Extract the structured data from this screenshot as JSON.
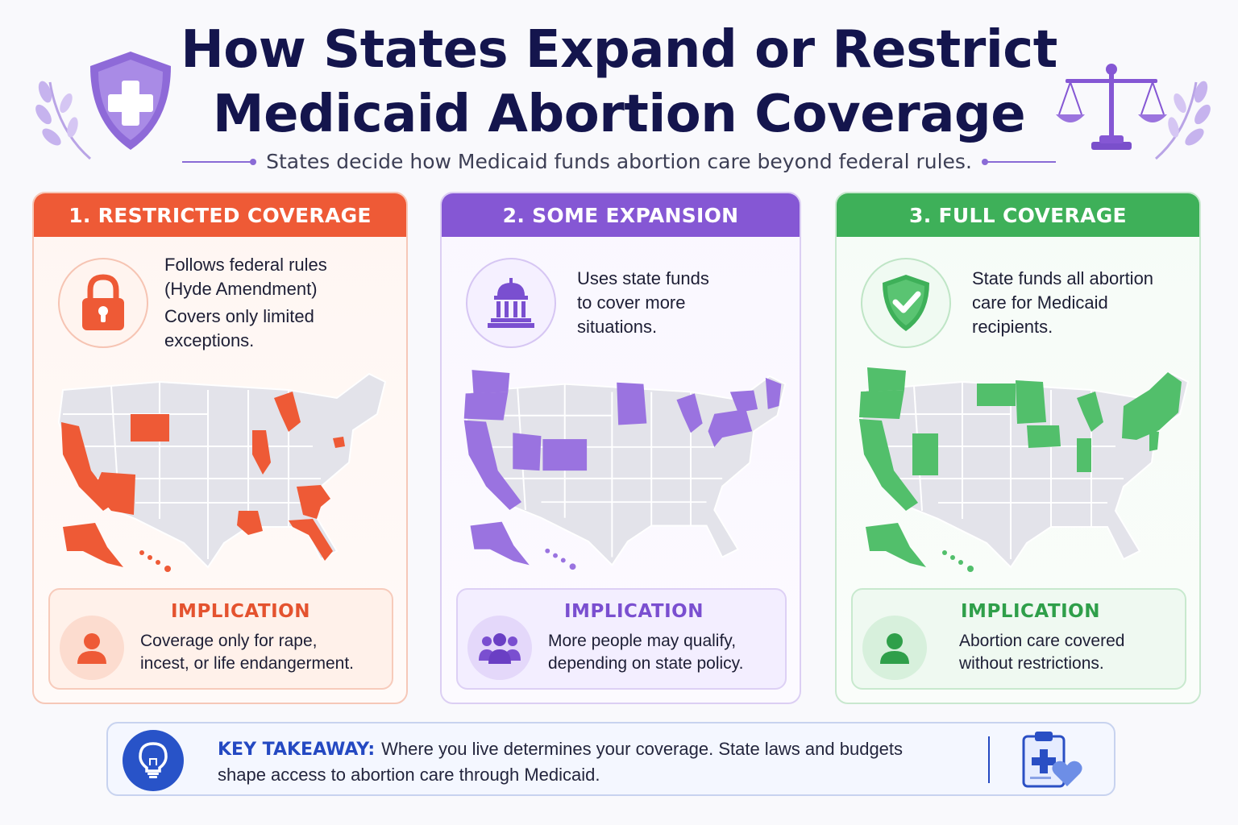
{
  "header": {
    "title_line1": "How States Expand or Restrict",
    "title_line2": "Medicaid Abortion Coverage",
    "subtitle": "States decide how Medicaid funds abortion care beyond federal rules.",
    "left_icon": "shield-plus-icon",
    "right_icon": "scales-of-justice-icon"
  },
  "cards": [
    {
      "heading": "1. RESTRICTED COVERAGE",
      "icon": "padlock-icon",
      "intro": [
        "Follows federal rules",
        "(Hyde Amendment)",
        "Covers only limited",
        "exceptions."
      ],
      "implication_label": "IMPLICATION",
      "implication_icon": "person-icon",
      "implication_text": [
        "Coverage only for rape,",
        "incest, or life endangerment."
      ],
      "color": "#ee5a36"
    },
    {
      "heading": "2. SOME EXPANSION",
      "icon": "capitol-building-icon",
      "intro": [
        "Uses state funds",
        "to cover more",
        "situations."
      ],
      "implication_label": "IMPLICATION",
      "implication_icon": "group-of-people-icon",
      "implication_text": [
        "More people may qualify,",
        "depending on state policy."
      ],
      "color": "#8557d4"
    },
    {
      "heading": "3. FULL COVERAGE",
      "icon": "shield-check-icon",
      "intro": [
        "State funds all abortion",
        "care for Medicaid",
        "recipients."
      ],
      "implication_label": "IMPLICATION",
      "implication_icon": "person-icon",
      "implication_text": [
        "Abortion care covered",
        "without restrictions."
      ],
      "color": "#3eb059"
    }
  ],
  "takeaway": {
    "label": "KEY TAKEAWAY:",
    "text_line1": "Where you live determines your coverage.  State laws and budgets",
    "text_line2": "shape access to abortion care through Medicaid.",
    "icon": "lightbulb-icon",
    "side_icon": "clipboard-heart-icon"
  },
  "colors": {
    "title": "#14154d",
    "map_base": "#e3e3ea"
  }
}
